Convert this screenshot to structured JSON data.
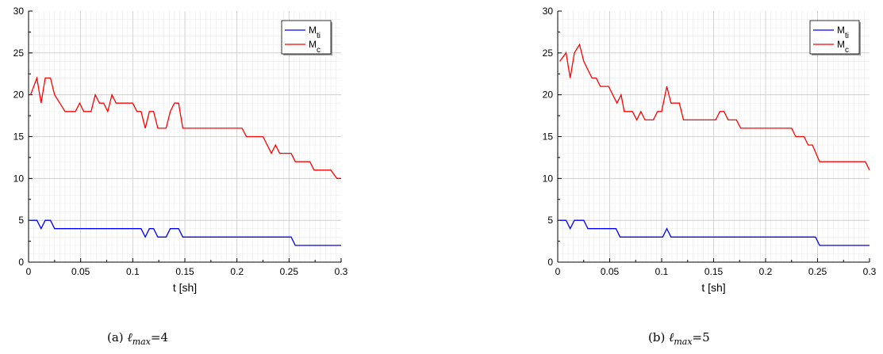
{
  "chart_data": [
    {
      "type": "line",
      "panel": "a",
      "caption": {
        "prefix": "(a)",
        "symbol": "ℓ",
        "sub": "max",
        "rest": "=4"
      },
      "xlabel": "t [sh]",
      "ylabel": "",
      "xlim": [
        0,
        0.3
      ],
      "ylim": [
        0,
        30
      ],
      "xticks": [
        "0",
        "0.05",
        "0.1",
        "0.15",
        "0.2",
        "0.25",
        "0.3"
      ],
      "yticks": [
        "0",
        "5",
        "10",
        "15",
        "20",
        "25",
        "30"
      ],
      "grid": true,
      "legend_position": "top-right",
      "series": [
        {
          "name": "M",
          "name_sub": "ti",
          "color": "#0000ff",
          "points": [
            [
              0.002,
              5
            ],
            [
              0.008,
              5
            ],
            [
              0.012,
              4
            ],
            [
              0.016,
              5
            ],
            [
              0.021,
              5
            ],
            [
              0.025,
              4
            ],
            [
              0.108,
              4
            ],
            [
              0.112,
              3
            ],
            [
              0.116,
              4
            ],
            [
              0.12,
              4
            ],
            [
              0.124,
              3
            ],
            [
              0.132,
              3
            ],
            [
              0.136,
              4
            ],
            [
              0.144,
              4
            ],
            [
              0.148,
              3
            ],
            [
              0.252,
              3
            ],
            [
              0.256,
              2
            ],
            [
              0.3,
              2
            ]
          ]
        },
        {
          "name": "M",
          "name_sub": "c",
          "color": "#ff0000",
          "points": [
            [
              0.002,
              20
            ],
            [
              0.008,
              22
            ],
            [
              0.012,
              19
            ],
            [
              0.016,
              22
            ],
            [
              0.021,
              22
            ],
            [
              0.025,
              20
            ],
            [
              0.03,
              19
            ],
            [
              0.035,
              18
            ],
            [
              0.045,
              18
            ],
            [
              0.049,
              19
            ],
            [
              0.053,
              18
            ],
            [
              0.06,
              18
            ],
            [
              0.064,
              20
            ],
            [
              0.068,
              19
            ],
            [
              0.072,
              19
            ],
            [
              0.076,
              18
            ],
            [
              0.08,
              20
            ],
            [
              0.084,
              19
            ],
            [
              0.1,
              19
            ],
            [
              0.104,
              18
            ],
            [
              0.108,
              18
            ],
            [
              0.112,
              16
            ],
            [
              0.116,
              18
            ],
            [
              0.12,
              18
            ],
            [
              0.124,
              16
            ],
            [
              0.132,
              16
            ],
            [
              0.136,
              18
            ],
            [
              0.14,
              19
            ],
            [
              0.144,
              19
            ],
            [
              0.148,
              16
            ],
            [
              0.205,
              16
            ],
            [
              0.209,
              15
            ],
            [
              0.225,
              15
            ],
            [
              0.233,
              13
            ],
            [
              0.237,
              14
            ],
            [
              0.241,
              13
            ],
            [
              0.252,
              13
            ],
            [
              0.256,
              12
            ],
            [
              0.27,
              12
            ],
            [
              0.274,
              11
            ],
            [
              0.29,
              11
            ],
            [
              0.296,
              10
            ],
            [
              0.3,
              10
            ]
          ]
        }
      ]
    },
    {
      "type": "line",
      "panel": "b",
      "caption": {
        "prefix": "(b)",
        "symbol": "ℓ",
        "sub": "max",
        "rest": "=5"
      },
      "xlabel": "t [sh]",
      "ylabel": "",
      "xlim": [
        0,
        0.3
      ],
      "ylim": [
        0,
        30
      ],
      "xticks": [
        "0",
        "0.05",
        "0.1",
        "0.15",
        "0.2",
        "0.25",
        "0.3"
      ],
      "yticks": [
        "0",
        "5",
        "10",
        "15",
        "20",
        "25",
        "30"
      ],
      "grid": true,
      "legend_position": "top-right",
      "series": [
        {
          "name": "M",
          "name_sub": "ti",
          "color": "#0000ff",
          "points": [
            [
              0.002,
              5
            ],
            [
              0.008,
              5
            ],
            [
              0.012,
              4
            ],
            [
              0.016,
              5
            ],
            [
              0.025,
              5
            ],
            [
              0.029,
              4
            ],
            [
              0.056,
              4
            ],
            [
              0.06,
              3
            ],
            [
              0.101,
              3
            ],
            [
              0.105,
              4
            ],
            [
              0.109,
              3
            ],
            [
              0.248,
              3
            ],
            [
              0.252,
              2
            ],
            [
              0.3,
              2
            ]
          ]
        },
        {
          "name": "M",
          "name_sub": "c",
          "color": "#ff0000",
          "points": [
            [
              0.002,
              24
            ],
            [
              0.008,
              25
            ],
            [
              0.012,
              22
            ],
            [
              0.016,
              25
            ],
            [
              0.021,
              26
            ],
            [
              0.025,
              24
            ],
            [
              0.029,
              23
            ],
            [
              0.033,
              22
            ],
            [
              0.037,
              22
            ],
            [
              0.041,
              21
            ],
            [
              0.049,
              21
            ],
            [
              0.053,
              20
            ],
            [
              0.057,
              19
            ],
            [
              0.061,
              20
            ],
            [
              0.064,
              18
            ],
            [
              0.072,
              18
            ],
            [
              0.076,
              17
            ],
            [
              0.08,
              18
            ],
            [
              0.084,
              17
            ],
            [
              0.092,
              17
            ],
            [
              0.096,
              18
            ],
            [
              0.1,
              18
            ],
            [
              0.105,
              21
            ],
            [
              0.109,
              19
            ],
            [
              0.117,
              19
            ],
            [
              0.121,
              17
            ],
            [
              0.152,
              17
            ],
            [
              0.156,
              18
            ],
            [
              0.16,
              18
            ],
            [
              0.164,
              17
            ],
            [
              0.172,
              17
            ],
            [
              0.176,
              16
            ],
            [
              0.225,
              16
            ],
            [
              0.229,
              15
            ],
            [
              0.237,
              15
            ],
            [
              0.241,
              14
            ],
            [
              0.245,
              14
            ],
            [
              0.252,
              12
            ],
            [
              0.296,
              12
            ],
            [
              0.3,
              11
            ]
          ]
        }
      ]
    }
  ]
}
